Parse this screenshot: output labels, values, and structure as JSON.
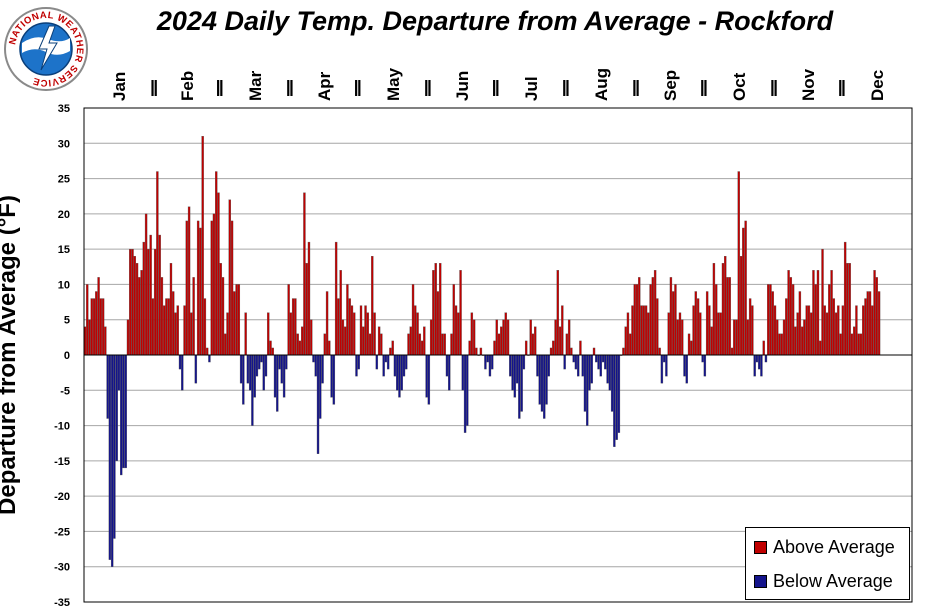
{
  "header": {
    "logo_text": "NATIONAL WEATHER SERVICE"
  },
  "chart_data": {
    "type": "bar",
    "title": "2024 Daily Temp. Departure from Average - Rockford",
    "ylabel": "Departure from Average (°F)",
    "xlabel": "",
    "ylim": [
      -35,
      35
    ],
    "yticks": [
      35,
      30,
      25,
      20,
      15,
      10,
      5,
      0,
      -5,
      -10,
      -15,
      -20,
      -25,
      -30,
      -35
    ],
    "grid": true,
    "legend_position": "bottom-right",
    "months": [
      "Jan",
      "Feb",
      "Mar",
      "Apr",
      "May",
      "Jun",
      "Jul",
      "Aug",
      "Sep",
      "Oct",
      "Nov",
      "Dec"
    ],
    "month_lengths": [
      31,
      29,
      31,
      30,
      31,
      30,
      31,
      31,
      30,
      31,
      30,
      31
    ],
    "colors": {
      "above": "#c00000",
      "below": "#14148c",
      "outline": "#555555"
    },
    "series": [
      {
        "name": "Above Average",
        "color": "#c00000"
      },
      {
        "name": "Below Average",
        "color": "#14148c"
      }
    ],
    "values": [
      4,
      10,
      5,
      8,
      8,
      9,
      11,
      8,
      8,
      4,
      -9,
      -29,
      -30,
      -26,
      -15,
      -5,
      -17,
      -16,
      -16,
      5,
      15,
      15,
      14,
      13,
      11,
      12,
      16,
      20,
      15,
      17,
      8,
      15,
      26,
      17,
      11,
      7,
      8,
      8,
      13,
      9,
      6,
      7,
      -2,
      -5,
      7,
      19,
      21,
      6,
      11,
      -4,
      19,
      18,
      31,
      8,
      1,
      -1,
      19,
      20,
      26,
      23,
      13,
      11,
      3,
      6,
      22,
      19,
      9,
      10,
      10,
      -4,
      -7,
      6,
      -4,
      -5,
      -10,
      -6,
      -3,
      -2,
      -1,
      -5,
      -3,
      6,
      2,
      1,
      -6,
      -8,
      -2,
      -4,
      -6,
      -2,
      10,
      6,
      8,
      8,
      3,
      2,
      4,
      23,
      13,
      16,
      5,
      -1,
      -3,
      -14,
      -9,
      -4,
      3,
      9,
      2,
      -6,
      -7,
      16,
      8,
      12,
      5,
      4,
      10,
      8,
      7,
      6,
      -3,
      -2,
      7,
      4,
      7,
      6,
      3,
      14,
      6,
      -2,
      4,
      3,
      -3,
      -1,
      -2,
      1,
      2,
      -3,
      -5,
      -6,
      -5,
      -3,
      -2,
      3,
      4,
      10,
      7,
      6,
      3,
      2,
      4,
      -6,
      -7,
      5,
      12,
      13,
      9,
      13,
      3,
      3,
      -3,
      -5,
      3,
      10,
      7,
      6,
      12,
      -5,
      -11,
      -10,
      2,
      6,
      5,
      1,
      0,
      1,
      0,
      -2,
      -1,
      -3,
      -2,
      2,
      5,
      3,
      4,
      5,
      6,
      5,
      -3,
      -5,
      -6,
      -4,
      -9,
      -8,
      -2,
      2,
      0,
      5,
      3,
      4,
      -3,
      -7,
      -8,
      -9,
      -7,
      -3,
      1,
      2,
      5,
      12,
      4,
      7,
      -2,
      3,
      5,
      1,
      -1,
      -2,
      -3,
      2,
      -3,
      -8,
      -10,
      -5,
      -4,
      1,
      -1,
      -2,
      -3,
      -1,
      -2,
      -4,
      -5,
      -8,
      -13,
      -12,
      -11,
      0,
      1,
      4,
      6,
      3,
      7,
      10,
      10,
      11,
      7,
      7,
      7,
      6,
      10,
      11,
      12,
      8,
      1,
      -4,
      -1,
      -3,
      6,
      11,
      9,
      10,
      5,
      6,
      5,
      -3,
      -4,
      3,
      2,
      7,
      9,
      8,
      6,
      -1,
      -3,
      9,
      7,
      4,
      13,
      10,
      6,
      6,
      13,
      14,
      11,
      11,
      1,
      5,
      5,
      26,
      14,
      18,
      19,
      5,
      8,
      7,
      -3,
      -1,
      -2,
      -3,
      2,
      -1,
      10,
      10,
      9,
      7,
      5,
      3,
      3,
      5,
      8,
      12,
      11,
      10,
      4,
      6,
      9,
      4,
      5,
      7,
      7,
      6,
      12,
      10,
      12,
      2,
      15,
      7,
      6,
      10,
      12,
      8,
      6,
      7,
      3,
      7,
      16,
      13,
      13,
      3,
      4,
      7,
      3,
      3,
      7,
      8,
      9,
      9,
      7,
      12,
      11,
      9
    ]
  }
}
